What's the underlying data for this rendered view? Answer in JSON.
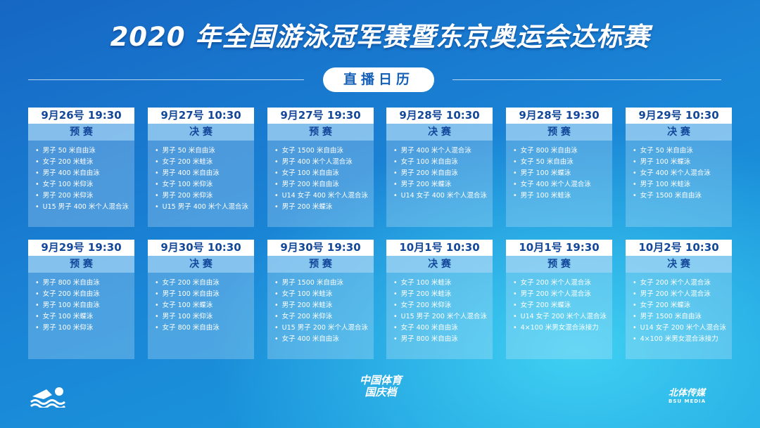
{
  "header": {
    "title": "2020 年全国游泳冠军赛暨东京奥运会达标赛",
    "subtitle": "直播日历"
  },
  "cards": [
    {
      "date": "9月26号 19:30",
      "stage": "预 赛",
      "events": [
        "男子 50 米自由泳",
        "女子 200 米蛙泳",
        "男子 400 米自由泳",
        "女子 100 米仰泳",
        "男子 200 米仰泳",
        "U15 男子 400 米个人混合泳"
      ]
    },
    {
      "date": "9月27号 10:30",
      "stage": "决 赛",
      "events": [
        "男子 50 米自由泳",
        "女子 200 米蛙泳",
        "男子 400 米自由泳",
        "女子 100 米仰泳",
        "男子 200 米仰泳",
        "U15 男子 400 米个人混合泳"
      ]
    },
    {
      "date": "9月27号 19:30",
      "stage": "预 赛",
      "events": [
        "女子 1500 米自由泳",
        "男子 400 米个人混合泳",
        "女子 100 米自由泳",
        "男子 200 米自由泳",
        "U14 女子 400 米个人混合泳",
        "男子 200 米蝶泳"
      ]
    },
    {
      "date": "9月28号 10:30",
      "stage": "决 赛",
      "events": [
        "男子 400 米个人混合泳",
        "女子 100 米自由泳",
        "男子 200 米自由泳",
        "男子 200 米蝶泳",
        "U14 女子 400 米个人混合泳"
      ]
    },
    {
      "date": "9月28号 19:30",
      "stage": "预 赛",
      "events": [
        "女子 800 米自由泳",
        "女子 50 米自由泳",
        "男子 100 米蝶泳",
        "女子 400 米个人混合泳",
        "男子 100 米蛙泳"
      ]
    },
    {
      "date": "9月29号 10:30",
      "stage": "决 赛",
      "events": [
        "女子 50 米自由泳",
        "男子 100 米蝶泳",
        "女子 400 米个人混合泳",
        "男子 100 米蛙泳",
        "女子 1500 米自由泳"
      ]
    },
    {
      "date": "9月29号 19:30",
      "stage": "预 赛",
      "events": [
        "男子 800 米自由泳",
        "女子 200 米自由泳",
        "男子 100 米自由泳",
        "女子 100 米蝶泳",
        "男子 100 米仰泳"
      ]
    },
    {
      "date": "9月30号 10:30",
      "stage": "决 赛",
      "events": [
        "女子 200 米自由泳",
        "男子 100 米自由泳",
        "女子 100 米蝶泳",
        "男子 100 米仰泳",
        "女子 800 米自由泳"
      ]
    },
    {
      "date": "9月30号 19:30",
      "stage": "预 赛",
      "events": [
        "男子 1500 米自由泳",
        "女子 100 米蛙泳",
        "男子 200 米蛙泳",
        "女子 200 米仰泳",
        "U15 男子 200 米个人混合泳",
        "女子 400 米自由泳"
      ]
    },
    {
      "date": "10月1号 10:30",
      "stage": "决 赛",
      "events": [
        "女子 100 米蛙泳",
        "男子 200 米蛙泳",
        "女子 200 米仰泳",
        "U15 男子 200 米个人混合泳",
        "女子 400 米自由泳",
        "男子 800 米自由泳"
      ]
    },
    {
      "date": "10月1号 19:30",
      "stage": "预 赛",
      "events": [
        "女子 200 米个人混合泳",
        "男子 200 米个人混合泳",
        "女子 200 米蝶泳",
        "U14 女子 200 米个人混合泳",
        "4×100 米男女混合泳接力"
      ]
    },
    {
      "date": "10月2号 10:30",
      "stage": "决 赛",
      "events": [
        "女子 200 米个人混合泳",
        "男子 200 米个人混合泳",
        "女子 200 米蝶泳",
        "男子 1500 米自由泳",
        "U14 女子 200 米个人混合泳",
        "4×100 米男女混合泳接力"
      ]
    }
  ],
  "footer": {
    "center_logo": [
      "中国体育",
      "国庆档"
    ],
    "right_logo": {
      "name": "北体传媒",
      "sub": "BSU MEDIA"
    }
  }
}
